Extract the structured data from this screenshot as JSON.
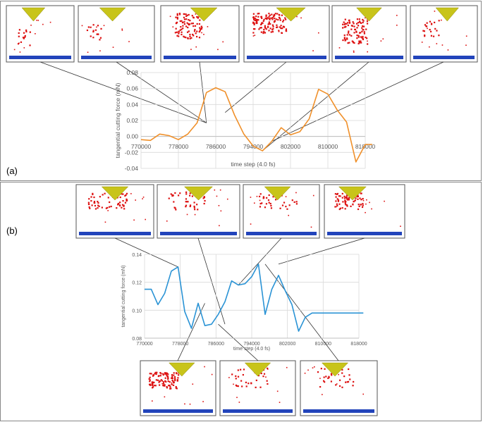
{
  "panels": {
    "a": {
      "label": "(a)"
    },
    "b": {
      "label": "(b)"
    }
  },
  "colors": {
    "series_a": "#f0902a",
    "series_b": "#2a93d5",
    "grid": "#d9d9d9",
    "tool": "#c8c41a",
    "atoms": "#dd1111",
    "base": "#2244bb",
    "connector": "#333333"
  },
  "chart_data": [
    {
      "type": "line",
      "title": "",
      "xlabel": "time step (4.0 fs)",
      "ylabel": "tangential cutting force (mN)",
      "xlim": [
        770000,
        818000
      ],
      "ylim": [
        -0.04,
        0.08
      ],
      "x_ticks": [
        "770000",
        "778000",
        "786000",
        "794000",
        "802000",
        "810000",
        "818000"
      ],
      "y_ticks": [
        "-0.04",
        "-0.02",
        "0.00",
        "0.02",
        "0.04",
        "0.06",
        "0.08"
      ],
      "grid": true,
      "series": [
        {
          "x": [
            770000,
            772000,
            774000,
            776000,
            778000,
            780000,
            782000,
            784000,
            786000,
            788000,
            790000,
            792000,
            794000,
            796000,
            798000,
            800000,
            802000,
            804000,
            806000,
            808000,
            810000,
            812000,
            814000,
            816000,
            818000,
            819500
          ],
          "values": [
            -0.004,
            -0.005,
            0.003,
            0.001,
            -0.004,
            0.003,
            0.017,
            0.055,
            0.061,
            0.056,
            0.027,
            0.003,
            -0.012,
            -0.018,
            -0.006,
            0.011,
            0.002,
            0.006,
            0.022,
            0.059,
            0.053,
            0.033,
            0.018,
            -0.032,
            -0.01,
            -0.01
          ]
        }
      ]
    },
    {
      "type": "line",
      "title": "",
      "xlabel": "time step (4.0 fs)",
      "ylabel": "tangential cutting force (mN)",
      "xlim": [
        770000,
        818000
      ],
      "ylim": [
        0.08,
        0.14
      ],
      "x_ticks": [
        "770000",
        "778000",
        "786000",
        "794000",
        "802000",
        "810000",
        "818000"
      ],
      "y_ticks": [
        "0.08",
        "0.10",
        "0.12",
        "0.14"
      ],
      "grid": true,
      "series": [
        {
          "x": [
            770000,
            771500,
            773000,
            774500,
            776000,
            777500,
            779000,
            780500,
            782000,
            783500,
            785000,
            786500,
            788000,
            789500,
            791000,
            792500,
            794000,
            795500,
            797000,
            798500,
            800000,
            801500,
            803000,
            804500,
            806000,
            807500,
            809000,
            810500,
            812000,
            813500,
            815000,
            816500,
            818000,
            819000
          ],
          "values": [
            0.115,
            0.115,
            0.104,
            0.112,
            0.128,
            0.131,
            0.099,
            0.087,
            0.105,
            0.089,
            0.09,
            0.097,
            0.106,
            0.121,
            0.118,
            0.119,
            0.124,
            0.133,
            0.097,
            0.115,
            0.125,
            0.114,
            0.104,
            0.085,
            0.095,
            0.098,
            0.098,
            0.098,
            0.098,
            0.098,
            0.098,
            0.098,
            0.098,
            0.098
          ]
        }
      ]
    }
  ]
}
